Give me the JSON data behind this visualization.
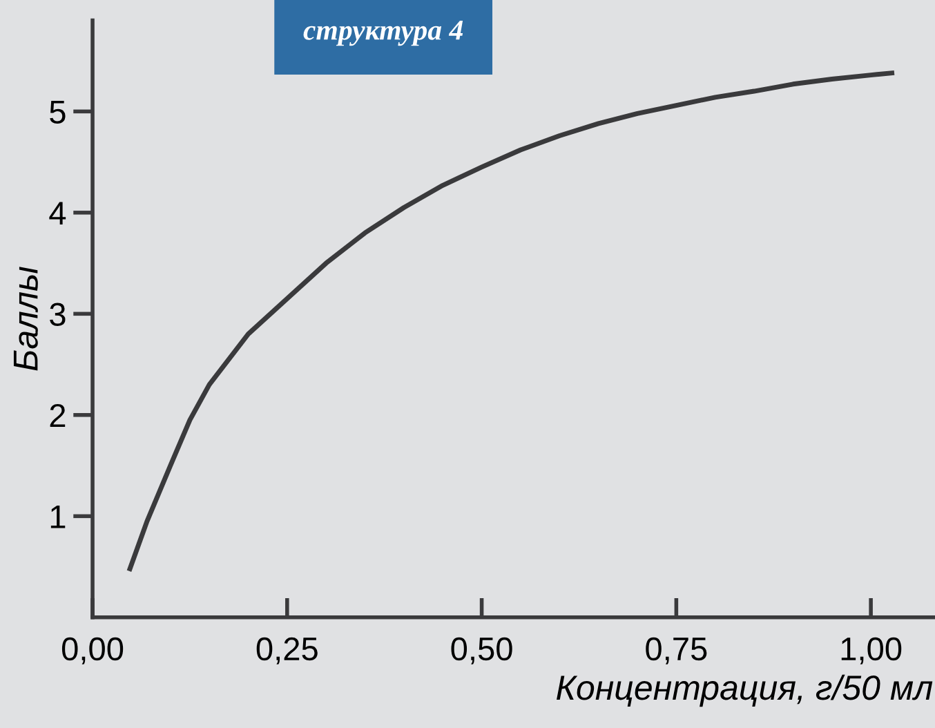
{
  "chart_data": {
    "type": "line",
    "title": "структура 4",
    "xlabel": "Концентрация, г/50 мл",
    "ylabel": "Баллы",
    "x": [
      0.048,
      0.07,
      0.1,
      0.125,
      0.15,
      0.2,
      0.25,
      0.3,
      0.35,
      0.4,
      0.45,
      0.5,
      0.55,
      0.6,
      0.65,
      0.7,
      0.75,
      0.8,
      0.85,
      0.9,
      0.95,
      1.0,
      1.027
    ],
    "series": [
      {
        "color": "#3a3a3c",
        "values": [
          0.48,
          0.95,
          1.5,
          1.95,
          2.3,
          2.8,
          3.15,
          3.5,
          3.8,
          4.05,
          4.27,
          4.45,
          4.62,
          4.76,
          4.88,
          4.98,
          5.06,
          5.14,
          5.2,
          5.27,
          5.32,
          5.36,
          5.38
        ]
      }
    ],
    "xlim": [
      0,
      1.08
    ],
    "ylim": [
      0,
      5.9
    ],
    "xticks": [
      {
        "value": 0,
        "label": "0,00"
      },
      {
        "value": 0.25,
        "label": "0,25"
      },
      {
        "value": 0.5,
        "label": "0,50"
      },
      {
        "value": 0.75,
        "label": "0,75"
      },
      {
        "value": 1.0,
        "label": "1,00"
      }
    ],
    "yticks": [
      1,
      2,
      3,
      4,
      5
    ],
    "grid": false,
    "legend": false,
    "marker": "none",
    "line_style": "solid"
  }
}
